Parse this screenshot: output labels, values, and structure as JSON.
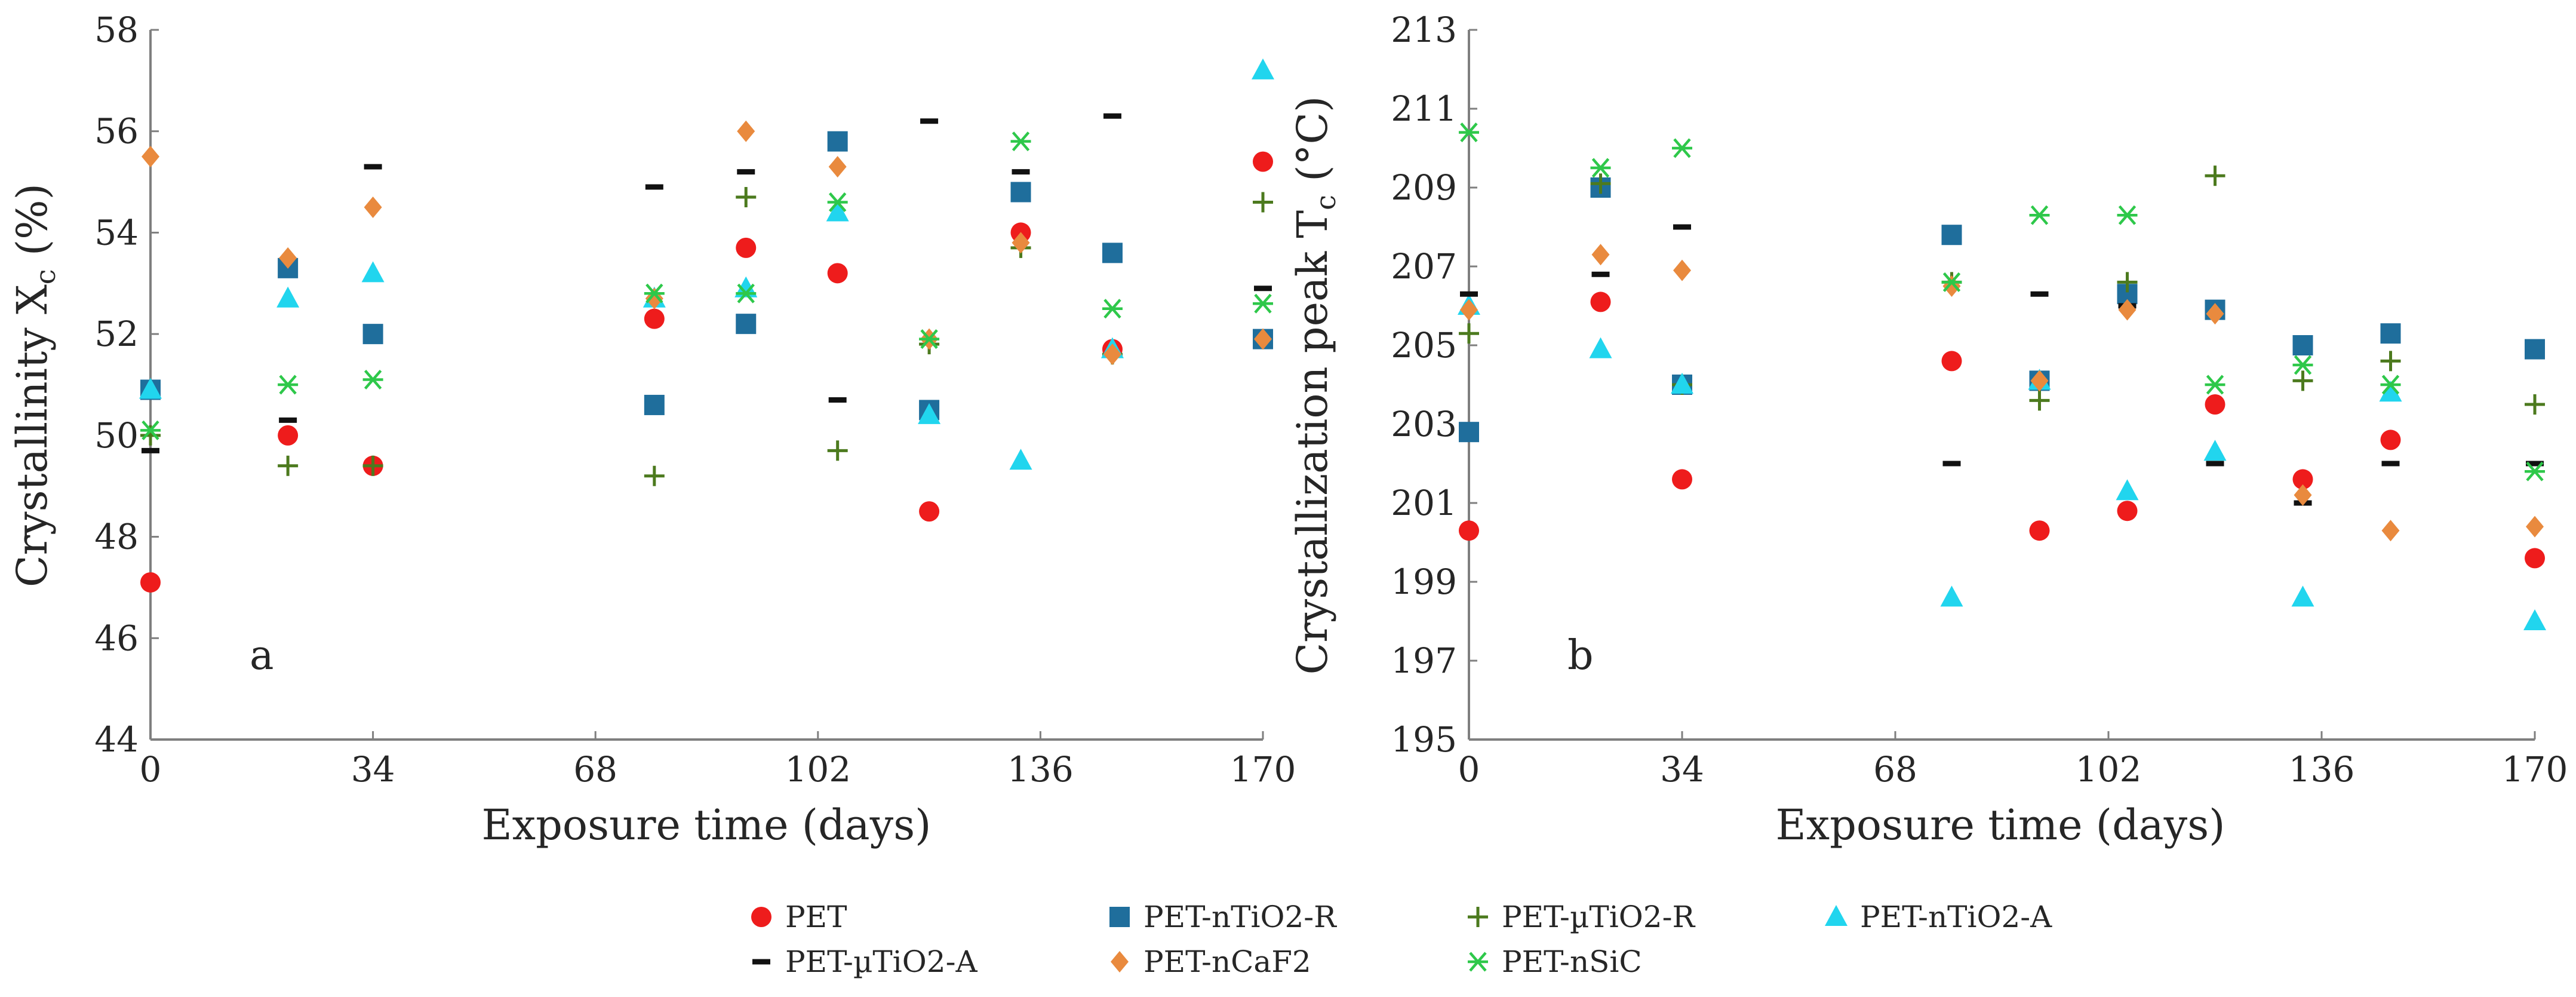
{
  "legend": [
    {
      "name": "PET",
      "marker": "circle",
      "color": "#EE1C1C"
    },
    {
      "name": "PET-nTiO2-R",
      "marker": "square",
      "color": "#1F6E9C"
    },
    {
      "name": "PET-µTiO2-R",
      "marker": "plus",
      "color": "#4C7A1E"
    },
    {
      "name": "PET-nTiO2-A",
      "marker": "triangle",
      "color": "#21D5EE"
    },
    {
      "name": "PET-µTiO2-A",
      "marker": "dash",
      "color": "#111111"
    },
    {
      "name": "PET-nCaF2",
      "marker": "diamond",
      "color": "#E98A3E"
    },
    {
      "name": "PET-nSiC",
      "marker": "asterisk",
      "color": "#2EC84A"
    }
  ],
  "chart_data": [
    {
      "type": "scatter",
      "panel_label": "a",
      "title": "",
      "xlabel": "Exposure time (days)",
      "ylabel_main": "Crystallinity X",
      "ylabel_sub": "c",
      "ylabel_tail": " (%)",
      "xlim": [
        0,
        170
      ],
      "ylim": [
        44,
        58
      ],
      "xticks": [
        0,
        34,
        68,
        102,
        136,
        170
      ],
      "yticks": [
        44,
        46,
        48,
        50,
        52,
        54,
        56,
        58
      ],
      "series": [
        {
          "name": "PET",
          "x": [
            0,
            21,
            34,
            77,
            91,
            105,
            119,
            133,
            147,
            170
          ],
          "y": [
            47.1,
            50.0,
            49.4,
            52.3,
            53.7,
            53.2,
            48.5,
            54.0,
            51.7,
            55.4
          ]
        },
        {
          "name": "PET-nTiO2-R",
          "x": [
            0,
            21,
            34,
            77,
            91,
            105,
            119,
            133,
            147,
            170
          ],
          "y": [
            50.9,
            53.3,
            52.0,
            50.6,
            52.2,
            55.8,
            50.5,
            54.8,
            53.6,
            51.9
          ]
        },
        {
          "name": "PET-µTiO2-R",
          "x": [
            0,
            21,
            34,
            77,
            91,
            105,
            119,
            133,
            147,
            170
          ],
          "y": [
            50.0,
            49.4,
            49.4,
            49.2,
            54.7,
            49.7,
            51.8,
            53.7,
            51.6,
            54.6
          ]
        },
        {
          "name": "PET-nTiO2-A",
          "x": [
            0,
            21,
            34,
            77,
            91,
            105,
            119,
            133,
            147,
            170
          ],
          "y": [
            50.9,
            52.7,
            53.2,
            52.7,
            52.9,
            54.4,
            50.4,
            49.5,
            51.7,
            57.2
          ]
        },
        {
          "name": "PET-µTiO2-A",
          "x": [
            0,
            21,
            34,
            77,
            91,
            105,
            119,
            133,
            147,
            170
          ],
          "y": [
            49.7,
            50.3,
            55.3,
            54.9,
            55.2,
            50.7,
            56.2,
            55.2,
            56.3,
            52.9
          ]
        },
        {
          "name": "PET-nCaF2",
          "x": [
            0,
            21,
            34,
            77,
            91,
            105,
            119,
            133,
            147,
            170
          ],
          "y": [
            55.5,
            53.5,
            54.5,
            52.7,
            56.0,
            55.3,
            51.9,
            53.8,
            51.6,
            51.9
          ]
        },
        {
          "name": "PET-nSiC",
          "x": [
            0,
            21,
            34,
            77,
            91,
            105,
            119,
            133,
            147,
            170
          ],
          "y": [
            50.1,
            51.0,
            51.1,
            52.8,
            52.8,
            54.6,
            51.9,
            55.8,
            52.5,
            52.6
          ]
        }
      ]
    },
    {
      "type": "scatter",
      "panel_label": "b",
      "title": "",
      "xlabel": "Exposure time (days)",
      "ylabel_main": "Crystallization peak T",
      "ylabel_sub": "c",
      "ylabel_tail": " (°C)",
      "xlim": [
        0,
        170
      ],
      "ylim": [
        195,
        213
      ],
      "xticks": [
        0,
        34,
        68,
        102,
        136,
        170
      ],
      "yticks": [
        195,
        197,
        199,
        201,
        203,
        205,
        207,
        209,
        211,
        213
      ],
      "series": [
        {
          "name": "PET",
          "x": [
            0,
            21,
            34,
            77,
            91,
            105,
            119,
            133,
            147,
            170
          ],
          "y": [
            200.3,
            206.1,
            201.6,
            204.6,
            200.3,
            200.8,
            203.5,
            201.6,
            202.6,
            199.6
          ]
        },
        {
          "name": "PET-nTiO2-R",
          "x": [
            0,
            21,
            34,
            77,
            91,
            105,
            119,
            133,
            147,
            170
          ],
          "y": [
            202.8,
            209.0,
            204.0,
            207.8,
            204.1,
            206.3,
            205.9,
            205.0,
            205.3,
            204.9
          ]
        },
        {
          "name": "PET-µTiO2-R",
          "x": [
            0,
            21,
            34,
            77,
            91,
            105,
            119,
            133,
            147,
            170
          ],
          "y": [
            205.3,
            209.1,
            204.0,
            206.6,
            203.6,
            206.6,
            209.3,
            204.1,
            204.6,
            203.5
          ]
        },
        {
          "name": "PET-nTiO2-A",
          "x": [
            0,
            21,
            34,
            77,
            91,
            105,
            119,
            133,
            147,
            170
          ],
          "y": [
            206.0,
            204.9,
            204.0,
            198.6,
            204.1,
            201.3,
            202.3,
            198.6,
            203.8,
            198.0
          ]
        },
        {
          "name": "PET-µTiO2-A",
          "x": [
            0,
            21,
            34,
            77,
            91,
            105,
            119,
            133,
            147,
            170
          ],
          "y": [
            206.3,
            206.8,
            208.0,
            202.0,
            206.3,
            206.0,
            202.0,
            201.0,
            202.0,
            202.0
          ]
        },
        {
          "name": "PET-nCaF2",
          "x": [
            0,
            21,
            34,
            77,
            91,
            105,
            119,
            133,
            147,
            170
          ],
          "y": [
            205.9,
            207.3,
            206.9,
            206.5,
            204.1,
            205.9,
            205.8,
            201.2,
            200.3,
            200.4
          ]
        },
        {
          "name": "PET-nSiC",
          "x": [
            0,
            21,
            34,
            77,
            91,
            105,
            119,
            133,
            147,
            170
          ],
          "y": [
            210.4,
            209.5,
            210.0,
            206.6,
            208.3,
            208.3,
            204.0,
            204.5,
            204.0,
            201.8
          ]
        }
      ]
    }
  ]
}
